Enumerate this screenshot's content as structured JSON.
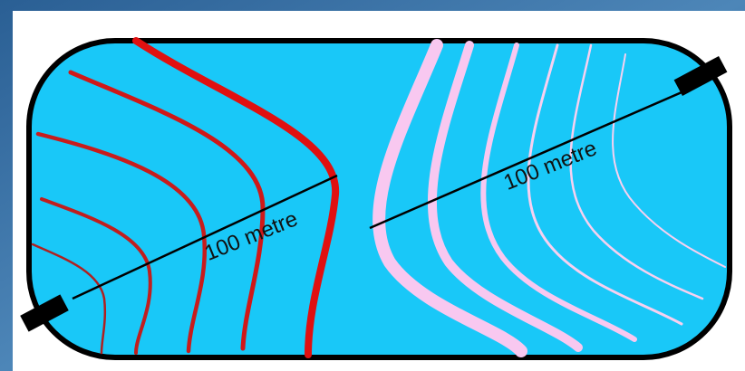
{
  "diagram": {
    "left_label": "100 metre",
    "right_label": "100 metre"
  }
}
